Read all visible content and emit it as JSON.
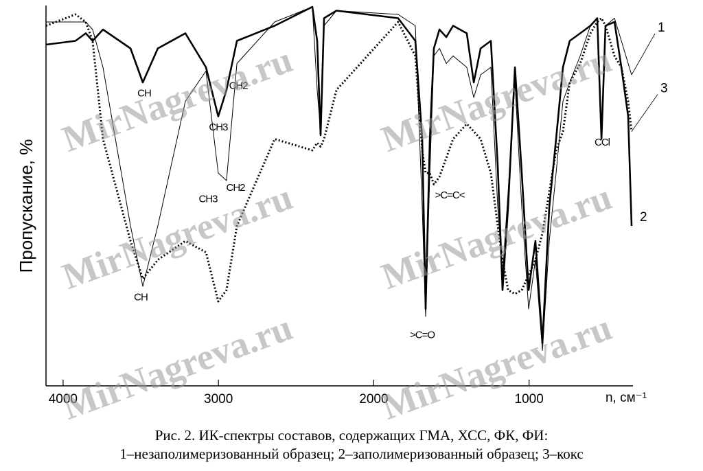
{
  "chart_data": {
    "type": "line",
    "y_label": "Пропускание, %",
    "x_label": "n, см⁻¹",
    "caption": [
      "Рис. 2. ИК-спектры составов, содержащих ГМА, ХСС, ФК, ФИ:",
      "1–незаполимеризованный образец; 2–заполимеризованный образец; 3–кокс"
    ],
    "watermark": "MirNagreva.ru",
    "xlim": [
      4110,
      340
    ],
    "xticks": [
      4000,
      3000,
      2000,
      1000
    ],
    "ylim": [
      0,
      100
    ],
    "x": [
      4110,
      3920,
      3854,
      3810,
      3743,
      3566,
      3487,
      3390,
      3213,
      3080,
      3001,
      2948,
      2881,
      2638,
      2395,
      2364,
      2342,
      2320,
      2240,
      1843,
      1732,
      1688,
      1666,
      1639,
      1613,
      1577,
      1533,
      1489,
      1401,
      1356,
      1312,
      1246,
      1202,
      1171,
      1135,
      1091,
      1047,
      1003,
      959,
      914,
      870,
      826,
      782,
      738,
      671,
      605,
      561,
      534,
      508,
      450,
      406,
      362,
      340
    ],
    "series": [
      {
        "name": "1",
        "color": "#000000",
        "width": 1,
        "dash": "none",
        "values": [
          96,
          96,
          96,
          94,
          84,
          42,
          26,
          42,
          75,
          83,
          56,
          54,
          85,
          96,
          100,
          78,
          67,
          95,
          99,
          98,
          95,
          47,
          18,
          56,
          87,
          89,
          85,
          87,
          84,
          76,
          82,
          84,
          47,
          29,
          51,
          80,
          47,
          20,
          33,
          9,
          38,
          56,
          75,
          80,
          87,
          95,
          97,
          67,
          95,
          97,
          91,
          85,
          82
        ]
      },
      {
        "name": "2",
        "color": "#000000",
        "width": 2.6,
        "dash": "none",
        "values": [
          90,
          91,
          93,
          91,
          94,
          89,
          80,
          89,
          93,
          84,
          71,
          78,
          91,
          95,
          100,
          91,
          66,
          97,
          99,
          97,
          91,
          65,
          20,
          65,
          89,
          94,
          92,
          95,
          93,
          80,
          89,
          91,
          58,
          25,
          47,
          84,
          56,
          25,
          38,
          11,
          47,
          65,
          84,
          91,
          93,
          95,
          97,
          65,
          95,
          96,
          84,
          71,
          42
        ]
      },
      {
        "name": "3",
        "color": "#000000",
        "width": 3,
        "dash": "2 3",
        "values": [
          95,
          98,
          96,
          91,
          65,
          38,
          28,
          33,
          38,
          35,
          22,
          25,
          42,
          65,
          62,
          64,
          63,
          65,
          78,
          96,
          87,
          62,
          56,
          56,
          53,
          55,
          60,
          65,
          69,
          67,
          65,
          56,
          42,
          33,
          25,
          24,
          25,
          29,
          33,
          40,
          51,
          62,
          67,
          80,
          85,
          93,
          96,
          97,
          95,
          87,
          84,
          75,
          67
        ]
      }
    ],
    "annotations": [
      {
        "text": "CH",
        "x": 3478,
        "y": 77
      },
      {
        "text": "CH",
        "x": 3500,
        "y": 23
      },
      {
        "text": "CH2",
        "x": 2872,
        "y": 79
      },
      {
        "text": "CH3",
        "x": 3001,
        "y": 68
      },
      {
        "text": "CH3",
        "x": 3067,
        "y": 49
      },
      {
        "text": "CH2",
        "x": 2890,
        "y": 52
      },
      {
        "text": ">C=C<",
        "x": 1511,
        "y": 50
      },
      {
        "text": ">C=O",
        "x": 1688,
        "y": 13
      },
      {
        "text": "CCl",
        "x": 530,
        "y": 64
      }
    ]
  }
}
